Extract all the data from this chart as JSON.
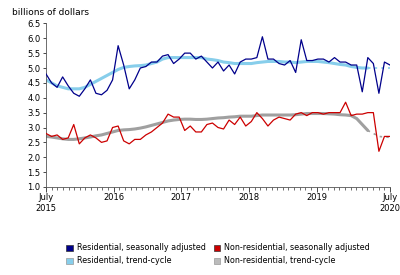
{
  "title_y": "billions of dollars",
  "ylim": [
    1.0,
    6.5
  ],
  "yticks": [
    1.0,
    1.5,
    2.0,
    2.5,
    3.0,
    3.5,
    4.0,
    4.5,
    5.0,
    5.5,
    6.0,
    6.5
  ],
  "res_sa": [
    4.8,
    4.5,
    4.35,
    4.7,
    4.4,
    4.15,
    4.05,
    4.3,
    4.6,
    4.15,
    4.1,
    4.25,
    4.6,
    5.75,
    5.1,
    4.3,
    4.6,
    5.0,
    5.05,
    5.2,
    5.2,
    5.4,
    5.45,
    5.15,
    5.3,
    5.5,
    5.5,
    5.3,
    5.4,
    5.2,
    5.0,
    5.2,
    4.9,
    5.1,
    4.8,
    5.2,
    5.3,
    5.3,
    5.35,
    6.05,
    5.3,
    5.3,
    5.15,
    5.1,
    5.25,
    4.85,
    5.95,
    5.25,
    5.25,
    5.3,
    5.3,
    5.2,
    5.35,
    5.2,
    5.2,
    5.1,
    5.1,
    4.2,
    5.35,
    5.15,
    4.15,
    5.2,
    5.1
  ],
  "res_tc": [
    4.6,
    4.5,
    4.4,
    4.35,
    4.3,
    4.3,
    4.3,
    4.35,
    4.45,
    4.55,
    4.65,
    4.75,
    4.85,
    4.95,
    5.02,
    5.05,
    5.07,
    5.08,
    5.1,
    5.15,
    5.2,
    5.3,
    5.35,
    5.35,
    5.35,
    5.35,
    5.35,
    5.35,
    5.35,
    5.3,
    5.28,
    5.25,
    5.2,
    5.18,
    5.15,
    5.15,
    5.15,
    5.15,
    5.18,
    5.2,
    5.22,
    5.22,
    5.22,
    5.2,
    5.2,
    5.18,
    5.2,
    5.22,
    5.22,
    5.22,
    5.2,
    5.18,
    5.15,
    5.12,
    5.1,
    5.05,
    5.02,
    5.0,
    5.0,
    5.0,
    5.0,
    5.0,
    5.0
  ],
  "nonres_sa": [
    2.8,
    2.7,
    2.75,
    2.6,
    2.65,
    3.1,
    2.45,
    2.65,
    2.75,
    2.65,
    2.5,
    2.55,
    3.0,
    3.05,
    2.55,
    2.45,
    2.6,
    2.6,
    2.75,
    2.85,
    3.0,
    3.15,
    3.45,
    3.35,
    3.35,
    2.9,
    3.05,
    2.85,
    2.85,
    3.1,
    3.15,
    3.0,
    2.95,
    3.25,
    3.1,
    3.35,
    3.05,
    3.2,
    3.5,
    3.3,
    3.05,
    3.25,
    3.35,
    3.3,
    3.25,
    3.45,
    3.5,
    3.4,
    3.5,
    3.5,
    3.45,
    3.5,
    3.5,
    3.5,
    3.85,
    3.4,
    3.45,
    3.45,
    3.5,
    3.5,
    2.2,
    2.7,
    2.7
  ],
  "nonres_tc": [
    2.7,
    2.68,
    2.65,
    2.62,
    2.6,
    2.6,
    2.62,
    2.65,
    2.68,
    2.72,
    2.75,
    2.8,
    2.85,
    2.9,
    2.92,
    2.93,
    2.95,
    2.98,
    3.02,
    3.07,
    3.12,
    3.17,
    3.22,
    3.25,
    3.27,
    3.28,
    3.28,
    3.27,
    3.27,
    3.28,
    3.3,
    3.32,
    3.33,
    3.35,
    3.36,
    3.38,
    3.38,
    3.38,
    3.4,
    3.42,
    3.42,
    3.42,
    3.42,
    3.42,
    3.42,
    3.43,
    3.45,
    3.47,
    3.47,
    3.47,
    3.47,
    3.46,
    3.45,
    3.43,
    3.42,
    3.4,
    3.3,
    3.1,
    2.9,
    2.8,
    2.7,
    2.68,
    2.67
  ],
  "res_sa_color": "#00008B",
  "res_tc_color": "#87CEEB",
  "nonres_sa_color": "#CC0000",
  "nonres_tc_color": "#A0A0A0",
  "background_color": "#FFFFFF",
  "legend_labels": [
    "Residential, seasonally adjusted",
    "Residential, trend-cycle",
    "Non-residential, seasonally adjusted",
    "Non-residential, trend-cycle"
  ],
  "legend_colors_fill": [
    "#00008B",
    "#87CEEB",
    "#CC0000",
    "#BBBBBB"
  ],
  "legend_colors_edge": [
    "#00008B",
    "#87CEEB",
    "#CC0000",
    "#999999"
  ],
  "tail_start": 58,
  "xtick_positions": [
    0,
    12,
    24,
    36,
    48,
    61
  ],
  "xtick_labels": [
    "July\n2015",
    "2016",
    "2017",
    "2018",
    "2019",
    "July\n2020"
  ]
}
